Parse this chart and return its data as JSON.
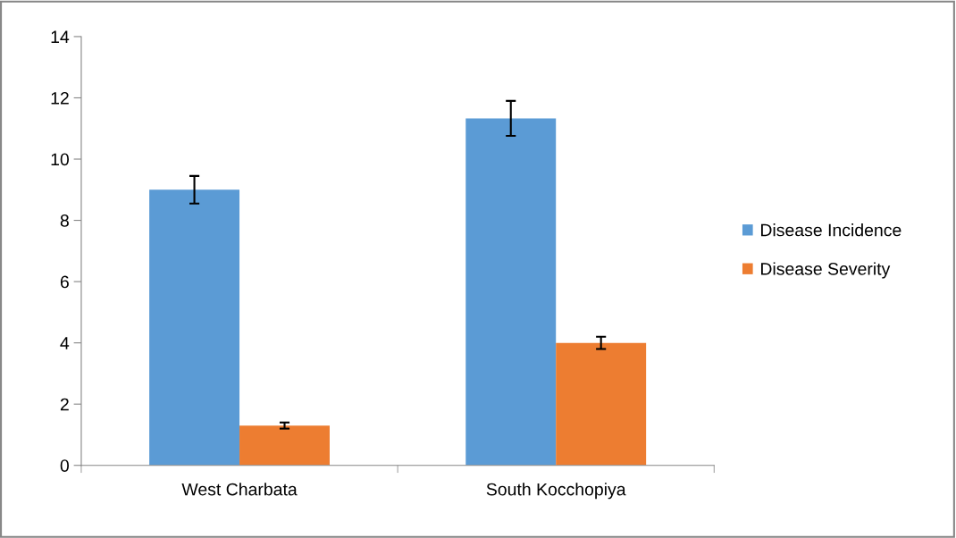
{
  "chart_data": {
    "type": "bar",
    "categories": [
      "West Charbata",
      "South Kocchopiya"
    ],
    "series": [
      {
        "name": "Disease Incidence",
        "color": "#5b9bd5",
        "values": [
          9.0,
          11.33
        ],
        "errors": [
          0.45,
          0.57
        ]
      },
      {
        "name": "Disease Severity",
        "color": "#ed7d31",
        "values": [
          1.3,
          4.0
        ],
        "errors": [
          0.1,
          0.2
        ]
      }
    ],
    "ylim": [
      0,
      14
    ],
    "yticks": [
      0,
      2,
      4,
      6,
      8,
      10,
      12,
      14
    ],
    "grid": false,
    "legend": "right"
  }
}
